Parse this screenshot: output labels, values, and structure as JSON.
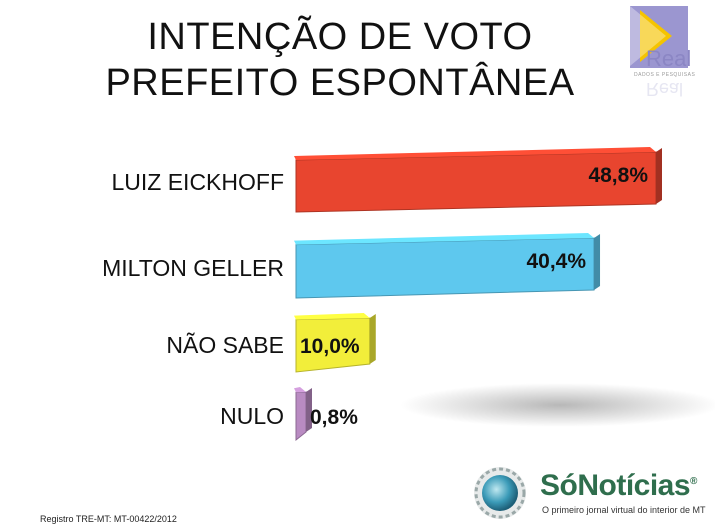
{
  "title_lines": [
    "INTENÇÃO DE VOTO",
    "PREFEITO ESPONTÂNEA"
  ],
  "chart_data": {
    "type": "bar",
    "orientation": "horizontal",
    "categories": [
      "LUIZ EICKHOFF",
      "MILTON GELLER",
      "NÃO SABE",
      "NULO"
    ],
    "values": [
      48.8,
      40.4,
      10.0,
      0.8
    ],
    "value_labels": [
      "48,8%",
      "40,4%",
      "10,0%",
      "0,8%"
    ],
    "colors": [
      "#e8452f",
      "#5ec8ee",
      "#f2ee3a",
      "#b98bc2"
    ],
    "title": "INTENÇÃO DE VOTO PREFEITO ESPONTÂNEA",
    "xlabel": "",
    "ylabel": "",
    "grid": false,
    "legend": "none"
  },
  "logos": {
    "real": {
      "name": "Real",
      "subtitle": "DADOS E PESQUISAS",
      "accent": "#8b86c4"
    },
    "sonoticias": {
      "name": "SóNotícias",
      "tagline": "O primeiro jornal virtual do interior de MT",
      "accent": "#2f6e4d"
    }
  },
  "footer": {
    "registration": "Registro TRE-MT: MT-00422/2012"
  }
}
